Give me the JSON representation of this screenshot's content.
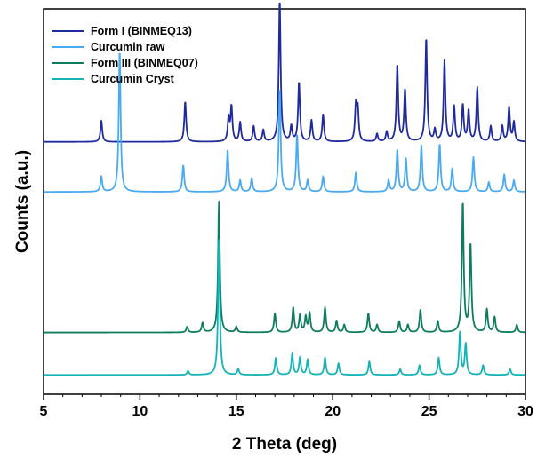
{
  "chart_data": {
    "type": "line",
    "title": "",
    "xlabel": "2 Theta (deg)",
    "ylabel": "Counts (a.u.)",
    "xlim": [
      5,
      30
    ],
    "ylim": [
      0,
      100
    ],
    "x_ticks": [
      5,
      10,
      15,
      20,
      25,
      30
    ],
    "y_ticks_shown": false,
    "grid": false,
    "legend_position": "top-left",
    "series": [
      {
        "name": "Form I (BINMEQ13)",
        "color": "#1f2a9c",
        "baseline": 65.5,
        "peaks": [
          [
            8.0,
            5.5
          ],
          [
            12.35,
            10.5
          ],
          [
            14.6,
            6
          ],
          [
            14.75,
            9
          ],
          [
            15.2,
            5
          ],
          [
            15.9,
            4
          ],
          [
            16.4,
            3
          ],
          [
            17.25,
            37
          ],
          [
            17.85,
            4
          ],
          [
            18.25,
            15.5
          ],
          [
            18.9,
            5.5
          ],
          [
            19.5,
            7
          ],
          [
            21.2,
            9
          ],
          [
            21.3,
            8
          ],
          [
            22.3,
            2
          ],
          [
            22.8,
            2.5
          ],
          [
            23.35,
            20
          ],
          [
            23.75,
            13.5
          ],
          [
            24.85,
            27
          ],
          [
            25.3,
            3
          ],
          [
            25.8,
            21
          ],
          [
            26.3,
            9
          ],
          [
            26.75,
            9.5
          ],
          [
            27.05,
            8
          ],
          [
            27.5,
            14
          ],
          [
            28.2,
            4
          ],
          [
            28.8,
            4
          ],
          [
            29.15,
            9
          ],
          [
            29.4,
            5
          ]
        ]
      },
      {
        "name": "Curcumin raw",
        "color": "#4aaaf0",
        "baseline": 52.5,
        "peaks": [
          [
            8.0,
            4
          ],
          [
            8.95,
            37
          ],
          [
            12.25,
            7
          ],
          [
            14.55,
            11
          ],
          [
            15.2,
            3
          ],
          [
            15.8,
            3.5
          ],
          [
            17.25,
            27
          ],
          [
            18.15,
            15
          ],
          [
            18.7,
            3
          ],
          [
            19.5,
            4
          ],
          [
            21.2,
            5
          ],
          [
            22.9,
            3
          ],
          [
            23.35,
            11
          ],
          [
            23.8,
            8.5
          ],
          [
            24.6,
            12
          ],
          [
            25.55,
            12.5
          ],
          [
            26.2,
            6
          ],
          [
            27.3,
            9
          ],
          [
            28.1,
            2.5
          ],
          [
            28.9,
            4.5
          ],
          [
            29.4,
            3
          ]
        ]
      },
      {
        "name": "Form III (BINMEQ07)",
        "color": "#0e7d5e",
        "baseline": 16,
        "peaks": [
          [
            12.45,
            1.5
          ],
          [
            13.25,
            2.5
          ],
          [
            14.1,
            34
          ],
          [
            15.0,
            1.5
          ],
          [
            17.0,
            5
          ],
          [
            17.95,
            6.5
          ],
          [
            18.3,
            4.5
          ],
          [
            18.6,
            4
          ],
          [
            18.8,
            5
          ],
          [
            19.6,
            6.5
          ],
          [
            20.2,
            3
          ],
          [
            20.6,
            2
          ],
          [
            21.85,
            5
          ],
          [
            22.3,
            2
          ],
          [
            23.45,
            3
          ],
          [
            23.9,
            2
          ],
          [
            24.55,
            6
          ],
          [
            25.45,
            3
          ],
          [
            26.75,
            34
          ],
          [
            27.15,
            23
          ],
          [
            28.0,
            6
          ],
          [
            28.4,
            4
          ],
          [
            29.55,
            2
          ]
        ]
      },
      {
        "name": "Curcumin Cryst",
        "color": "#14b3b8",
        "baseline": 5,
        "peaks": [
          [
            12.5,
            1
          ],
          [
            14.1,
            35
          ],
          [
            15.1,
            1.5
          ],
          [
            17.05,
            4.5
          ],
          [
            17.9,
            5.5
          ],
          [
            18.3,
            4.5
          ],
          [
            18.7,
            4
          ],
          [
            19.6,
            4.5
          ],
          [
            20.3,
            3
          ],
          [
            21.9,
            3.5
          ],
          [
            23.5,
            1.5
          ],
          [
            24.5,
            2.5
          ],
          [
            25.5,
            4.5
          ],
          [
            26.6,
            11
          ],
          [
            26.9,
            8
          ],
          [
            27.8,
            2.5
          ],
          [
            29.2,
            1.5
          ]
        ]
      }
    ]
  }
}
